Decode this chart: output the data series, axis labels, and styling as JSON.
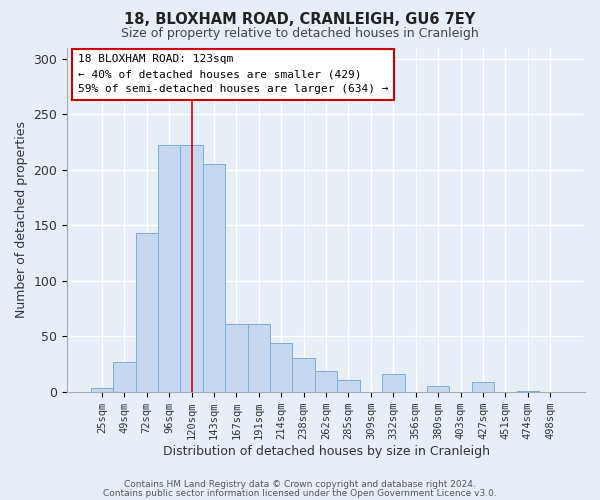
{
  "title1": "18, BLOXHAM ROAD, CRANLEIGH, GU6 7EY",
  "title2": "Size of property relative to detached houses in Cranleigh",
  "xlabel": "Distribution of detached houses by size in Cranleigh",
  "ylabel": "Number of detached properties",
  "footer1": "Contains HM Land Registry data © Crown copyright and database right 2024.",
  "footer2": "Contains public sector information licensed under the Open Government Licence v3.0.",
  "bar_labels": [
    "25sqm",
    "49sqm",
    "72sqm",
    "96sqm",
    "120sqm",
    "143sqm",
    "167sqm",
    "191sqm",
    "214sqm",
    "238sqm",
    "262sqm",
    "285sqm",
    "309sqm",
    "332sqm",
    "356sqm",
    "380sqm",
    "403sqm",
    "427sqm",
    "451sqm",
    "474sqm",
    "498sqm"
  ],
  "bar_values": [
    3,
    27,
    143,
    222,
    222,
    205,
    61,
    61,
    44,
    30,
    19,
    11,
    0,
    16,
    0,
    5,
    0,
    9,
    0,
    1,
    0
  ],
  "bar_color": "#c5d8f0",
  "bar_edge_color": "#7badd6",
  "vline_x": 4,
  "vline_color": "#cc0000",
  "ylim": [
    0,
    310
  ],
  "yticks": [
    0,
    50,
    100,
    150,
    200,
    250,
    300
  ],
  "annotation_title": "18 BLOXHAM ROAD: 123sqm",
  "annotation_line1": "← 40% of detached houses are smaller (429)",
  "annotation_line2": "59% of semi-detached houses are larger (634) →",
  "background_color": "#e8eef8",
  "grid_color": "#ffffff",
  "ann_box_color": "#ffffff",
  "ann_edge_color": "#cc0000"
}
